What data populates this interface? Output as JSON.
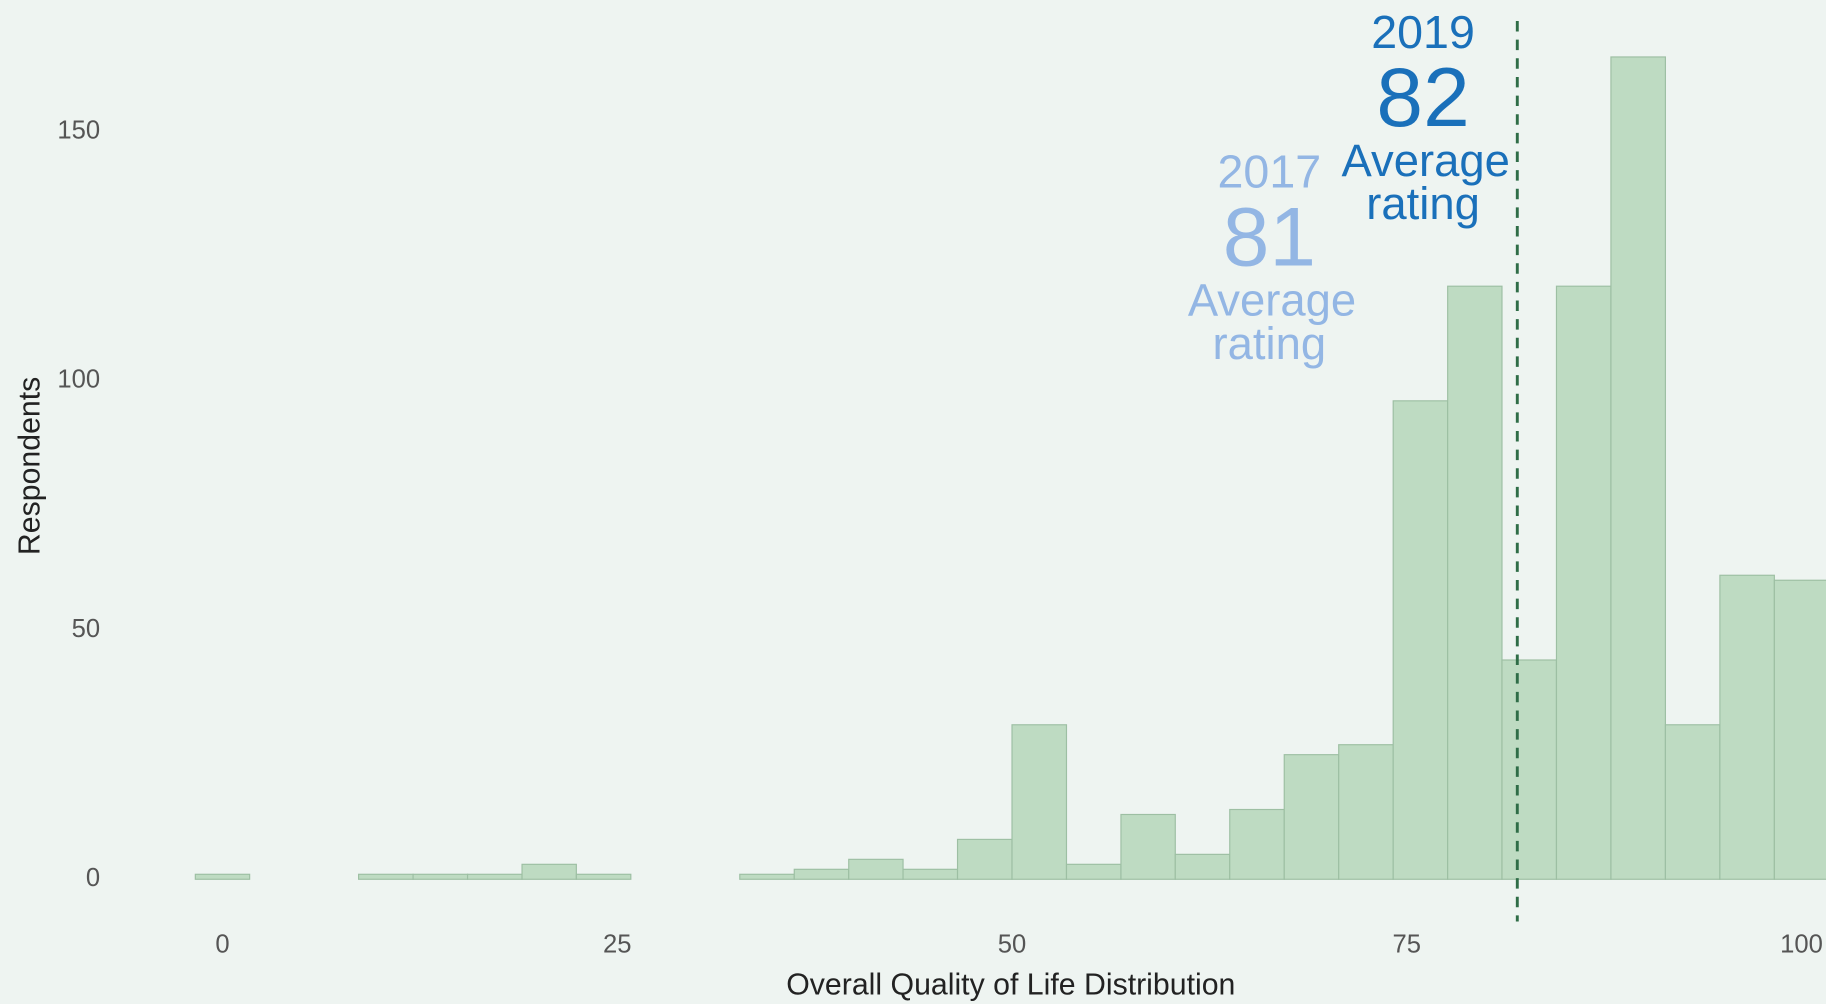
{
  "chart_data": {
    "type": "histogram",
    "xlabel": "Overall Quality of Life Distribution",
    "ylabel": "Respondents",
    "bins": [
      -1.72,
      1.72,
      5.17,
      8.62,
      12.07,
      15.52,
      18.97,
      22.41,
      25.86,
      29.31,
      32.76,
      36.21,
      39.66,
      43.1,
      46.55,
      50.0,
      53.45,
      56.9,
      60.34,
      63.79,
      67.24,
      70.69,
      74.14,
      77.59,
      81.03,
      84.48,
      87.93,
      91.38,
      94.83,
      98.28,
      101.72
    ],
    "values": [
      1,
      0,
      0,
      1,
      1,
      1,
      3,
      1,
      0,
      0,
      1,
      2,
      4,
      2,
      8,
      31,
      3,
      13,
      5,
      14,
      25,
      27,
      96,
      119,
      44,
      119,
      165,
      31,
      61,
      60
    ],
    "color": "#bedbc2",
    "xlim": [
      -14.09,
      101.55
    ],
    "ylim": [
      -8,
      173
    ],
    "xticks": [
      0,
      25,
      50,
      75,
      100
    ],
    "yticks": [
      0,
      50,
      100,
      150
    ],
    "vline": 82,
    "vline_color": "#2f6d47",
    "annotations": [
      {
        "year": "2017",
        "value": 81,
        "label": "Average rating",
        "color": "#93b6e4"
      },
      {
        "year": "2019",
        "value": 82,
        "label": "Average rating",
        "color": "#1a70ba"
      }
    ]
  }
}
